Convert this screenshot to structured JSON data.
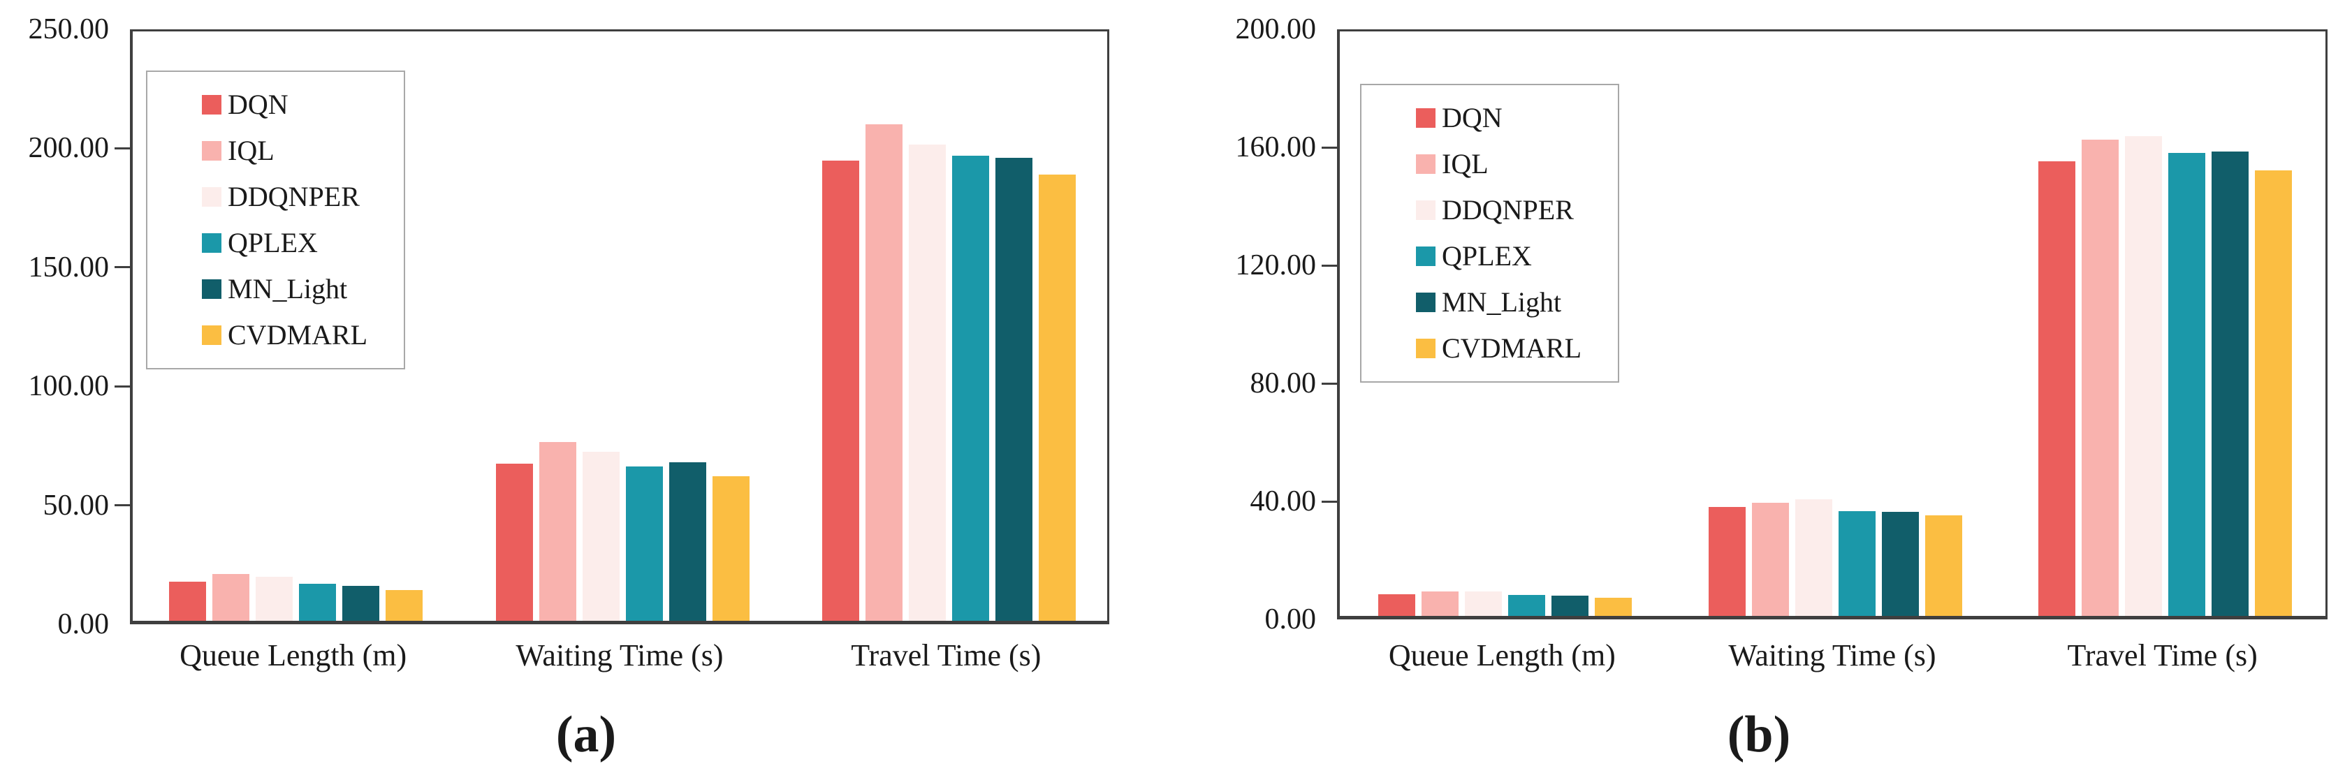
{
  "chart_data": [
    {
      "id": "a",
      "caption": "(a)",
      "type": "bar",
      "categories": [
        "Queue Length (m)",
        "Waiting Time (s)",
        "Travel Time (s)"
      ],
      "series": [
        {
          "name": "DQN",
          "color": "#EB5E5C",
          "values": [
            16.3,
            66.0,
            193.5
          ]
        },
        {
          "name": "IQL",
          "color": "#F9B2AE",
          "values": [
            19.8,
            75.2,
            208.7
          ]
        },
        {
          "name": "DDQNPER",
          "color": "#FCEDEB",
          "values": [
            18.6,
            71.0,
            200.0
          ]
        },
        {
          "name": "QPLEX",
          "color": "#1B98A9",
          "values": [
            15.6,
            64.8,
            195.5
          ]
        },
        {
          "name": "MN_Light",
          "color": "#115E6A",
          "values": [
            14.7,
            66.7,
            194.5
          ]
        },
        {
          "name": "CVDMARL",
          "color": "#FBBE42",
          "values": [
            12.8,
            60.8,
            187.5
          ]
        }
      ],
      "ylim": [
        0,
        250
      ],
      "ytick_step": 50,
      "y_tick_labels": [
        "250.00",
        "200.00",
        "150.00",
        "100.00",
        "50.00",
        "0.00"
      ],
      "legend_position": "top-left-inside",
      "grid": false,
      "axis_color": "#3F3F3F"
    },
    {
      "id": "b",
      "caption": "(b)",
      "type": "bar",
      "categories": [
        "Queue Length (m)",
        "Waiting Time (s)",
        "Travel Time (s)"
      ],
      "series": [
        {
          "name": "DQN",
          "color": "#EB5E5C",
          "values": [
            7.4,
            37.0,
            154.0
          ]
        },
        {
          "name": "IQL",
          "color": "#F9B2AE",
          "values": [
            8.3,
            38.3,
            161.5
          ]
        },
        {
          "name": "DDQNPER",
          "color": "#FCEDEB",
          "values": [
            8.4,
            39.5,
            162.5
          ]
        },
        {
          "name": "QPLEX",
          "color": "#1B98A9",
          "values": [
            7.2,
            35.6,
            157.0
          ]
        },
        {
          "name": "MN_Light",
          "color": "#115E6A",
          "values": [
            6.9,
            35.2,
            157.5
          ]
        },
        {
          "name": "CVDMARL",
          "color": "#FBBE42",
          "values": [
            6.2,
            34.0,
            151.0
          ]
        }
      ],
      "ylim": [
        0,
        200
      ],
      "ytick_step": 40,
      "y_tick_labels": [
        "200.00",
        "160.00",
        "120.00",
        "80.00",
        "40.00",
        "0.00"
      ],
      "legend_position": "top-left-inside",
      "grid": false,
      "axis_color": "#3F3F3F"
    }
  ]
}
